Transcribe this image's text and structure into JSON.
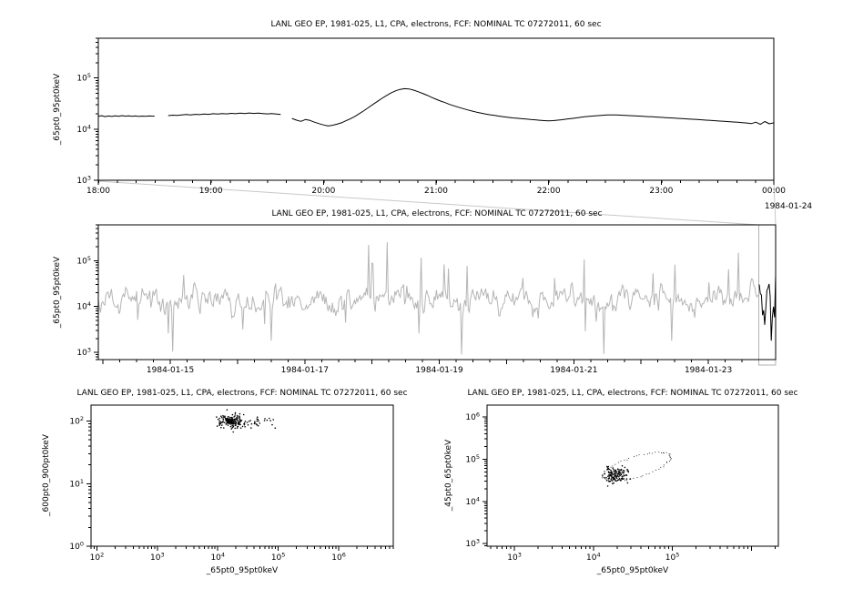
{
  "window": {
    "background": "#ffffff"
  },
  "chart_data": [
    {
      "type": "line",
      "title": "LANL GEO EP, 1981-025, L1, CPA, electrons, FCF: NOMINAL TC 07272011, 60 sec",
      "ylabel": "_65pt0_95pt0keV",
      "xlabel": "",
      "line_color": "#000000",
      "x_axis": {
        "kind": "linear",
        "unit": "hours",
        "range": [
          18,
          24
        ],
        "major_step": 1,
        "minor_step": 0.1667,
        "tick_positions": [
          18,
          19,
          20,
          21,
          22,
          23,
          24
        ],
        "tick_labels": [
          "18:00",
          "19:00",
          "20:00",
          "21:00",
          "22:00",
          "23:00",
          "00:00"
        ],
        "date_label": "1984-01-24"
      },
      "y_axis": {
        "kind": "log",
        "range": [
          1000,
          600000
        ],
        "tick_exponents": [
          3,
          4,
          5
        ]
      },
      "points": [
        [
          18,
          17800
        ],
        [
          18.03,
          18300
        ],
        [
          18.06,
          17600
        ],
        [
          18.09,
          18100
        ],
        [
          18.12,
          17700
        ],
        [
          18.15,
          18200
        ],
        [
          18.18,
          17800
        ],
        [
          18.21,
          18400
        ],
        [
          18.24,
          17900
        ],
        [
          18.27,
          18200
        ],
        [
          18.3,
          17800
        ],
        [
          18.33,
          18100
        ],
        [
          18.36,
          17700
        ],
        [
          18.39,
          18000
        ],
        [
          18.42,
          17800
        ],
        [
          18.45,
          18100
        ],
        [
          18.48,
          17900
        ],
        [
          18.5,
          18000
        ],
        [
          18.52,
          null
        ],
        [
          18.62,
          18400
        ],
        [
          18.66,
          18800
        ],
        [
          18.7,
          18500
        ],
        [
          18.74,
          19000
        ],
        [
          18.78,
          19300
        ],
        [
          18.82,
          18900
        ],
        [
          18.86,
          19500
        ],
        [
          18.9,
          19200
        ],
        [
          18.94,
          19800
        ],
        [
          18.98,
          19500
        ],
        [
          19.02,
          20000
        ],
        [
          19.06,
          19700
        ],
        [
          19.1,
          20200
        ],
        [
          19.14,
          19900
        ],
        [
          19.18,
          20400
        ],
        [
          19.22,
          20000
        ],
        [
          19.26,
          20500
        ],
        [
          19.3,
          20200
        ],
        [
          19.34,
          20700
        ],
        [
          19.38,
          20300
        ],
        [
          19.42,
          20600
        ],
        [
          19.46,
          20200
        ],
        [
          19.5,
          19900
        ],
        [
          19.54,
          20100
        ],
        [
          19.58,
          19700
        ],
        [
          19.62,
          19300
        ],
        [
          19.64,
          null
        ],
        [
          19.72,
          16200
        ],
        [
          19.76,
          15000
        ],
        [
          19.8,
          14200
        ],
        [
          19.84,
          15400
        ],
        [
          19.88,
          14800
        ],
        [
          19.92,
          13700
        ],
        [
          19.96,
          12800
        ],
        [
          20,
          12100
        ],
        [
          20.04,
          11500
        ],
        [
          20.08,
          11900
        ],
        [
          20.12,
          12500
        ],
        [
          20.16,
          13300
        ],
        [
          20.2,
          14600
        ],
        [
          20.24,
          16000
        ],
        [
          20.28,
          17800
        ],
        [
          20.32,
          20200
        ],
        [
          20.36,
          23000
        ],
        [
          20.4,
          26500
        ],
        [
          20.44,
          30500
        ],
        [
          20.48,
          35000
        ],
        [
          20.52,
          40000
        ],
        [
          20.56,
          45500
        ],
        [
          20.6,
          51000
        ],
        [
          20.64,
          56000
        ],
        [
          20.68,
          60000
        ],
        [
          20.72,
          62000
        ],
        [
          20.76,
          61000
        ],
        [
          20.8,
          58000
        ],
        [
          20.84,
          54000
        ],
        [
          20.88,
          50000
        ],
        [
          20.92,
          46000
        ],
        [
          20.96,
          42000
        ],
        [
          21,
          38500
        ],
        [
          21.04,
          35500
        ],
        [
          21.08,
          33000
        ],
        [
          21.12,
          30500
        ],
        [
          21.16,
          28500
        ],
        [
          21.2,
          26800
        ],
        [
          21.24,
          25200
        ],
        [
          21.28,
          23800
        ],
        [
          21.32,
          22600
        ],
        [
          21.36,
          21500
        ],
        [
          21.4,
          20600
        ],
        [
          21.44,
          19800
        ],
        [
          21.48,
          19100
        ],
        [
          21.52,
          18500
        ],
        [
          21.56,
          17900
        ],
        [
          21.6,
          17400
        ],
        [
          21.64,
          17000
        ],
        [
          21.68,
          16600
        ],
        [
          21.72,
          16300
        ],
        [
          21.76,
          16000
        ],
        [
          21.8,
          15700
        ],
        [
          21.84,
          15400
        ],
        [
          21.88,
          15200
        ],
        [
          21.92,
          14900
        ],
        [
          21.96,
          14700
        ],
        [
          22,
          14500
        ],
        [
          22.04,
          14700
        ],
        [
          22.08,
          15000
        ],
        [
          22.12,
          15300
        ],
        [
          22.16,
          15700
        ],
        [
          22.2,
          16100
        ],
        [
          22.24,
          16500
        ],
        [
          22.28,
          17000
        ],
        [
          22.32,
          17400
        ],
        [
          22.36,
          17800
        ],
        [
          22.4,
          18100
        ],
        [
          22.44,
          18400
        ],
        [
          22.48,
          18700
        ],
        [
          22.52,
          18900
        ],
        [
          22.56,
          19000
        ],
        [
          22.6,
          18900
        ],
        [
          22.64,
          18800
        ],
        [
          22.68,
          18600
        ],
        [
          22.72,
          18400
        ],
        [
          22.76,
          18200
        ],
        [
          22.8,
          18000
        ],
        [
          22.84,
          17800
        ],
        [
          22.88,
          17600
        ],
        [
          22.92,
          17400
        ],
        [
          22.96,
          17200
        ],
        [
          23,
          17000
        ],
        [
          23.04,
          16800
        ],
        [
          23.08,
          16600
        ],
        [
          23.12,
          16400
        ],
        [
          23.16,
          16200
        ],
        [
          23.2,
          16000
        ],
        [
          23.24,
          15800
        ],
        [
          23.28,
          15600
        ],
        [
          23.32,
          15400
        ],
        [
          23.36,
          15200
        ],
        [
          23.4,
          15000
        ],
        [
          23.44,
          14800
        ],
        [
          23.48,
          14600
        ],
        [
          23.52,
          14400
        ],
        [
          23.56,
          14200
        ],
        [
          23.6,
          14000
        ],
        [
          23.64,
          13800
        ],
        [
          23.68,
          13600
        ],
        [
          23.72,
          13400
        ],
        [
          23.76,
          13200
        ],
        [
          23.8,
          12800
        ],
        [
          23.84,
          13700
        ],
        [
          23.88,
          12400
        ],
        [
          23.92,
          14100
        ],
        [
          23.96,
          12700
        ],
        [
          24,
          13300
        ]
      ]
    },
    {
      "type": "line",
      "title": "LANL GEO EP, 1981-025, L1, CPA, electrons, FCF: NOMINAL TC 07272011, 60 sec",
      "ylabel": "_65pt0_95pt0keV",
      "xlabel": "",
      "line_color": "#b5b5b5",
      "x_axis": {
        "kind": "linear",
        "unit": "days-of-1984-01",
        "range": [
          13.93,
          24.0
        ],
        "major_step": 1,
        "minor_step": 0.25,
        "tick_positions": [
          15,
          17,
          19,
          21,
          23
        ],
        "tick_labels": [
          "1984-01-15",
          "1984-01-17",
          "1984-01-19",
          "1984-01-21",
          "1984-01-23"
        ]
      },
      "y_axis": {
        "kind": "log",
        "range": [
          700,
          600000
        ],
        "tick_exponents": [
          3,
          4,
          5
        ]
      },
      "highlight": {
        "range": [
          23.75,
          24.0
        ],
        "series_color": "#000000",
        "box_color": "#b0b0b0",
        "connector_color": "#c8c8c8"
      },
      "synthetic": {
        "seed": 1984,
        "n": 620,
        "base_log": 4.15,
        "sigma": 0.12,
        "ar": 0.62,
        "spike_prob": 0.055,
        "spike_min": 0.3,
        "spike_max": 1.05,
        "up_fraction": 0.6,
        "end_boost": 2.2,
        "clip_log": [
          2.95,
          5.4
        ]
      }
    },
    {
      "type": "scatter",
      "title": "LANL GEO EP, 1981-025, L1, CPA, electrons, FCF: NOMINAL TC 07272011, 60 sec",
      "ylabel": "_600pt0_900pt0keV",
      "xlabel": "_65pt0_95pt0keV",
      "dot_color": "#000000",
      "x_axis": {
        "kind": "log",
        "range": [
          80,
          8000000
        ],
        "tick_exponents": [
          2,
          3,
          4,
          5,
          6
        ]
      },
      "y_axis": {
        "kind": "log",
        "range": [
          1,
          180
        ],
        "tick_exponents": [
          0,
          1,
          2
        ]
      },
      "clusters": [
        {
          "seed": 7,
          "n": 160,
          "cx_log": 4.24,
          "cy_log": 2.0,
          "sx": 0.1,
          "sy": 0.055
        },
        {
          "seed": 8,
          "n": 40,
          "cx_log": 4.6,
          "cy_log": 1.97,
          "sx": 0.25,
          "sy": 0.035
        }
      ]
    },
    {
      "type": "scatter",
      "title": "LANL GEO EP, 1981-025, L1, CPA, electrons, FCF: NOMINAL TC 07272011, 60 sec",
      "ylabel": "_45pt0_65pt0keV",
      "xlabel": "_65pt0_95pt0keV",
      "dot_color": "#000000",
      "x_axis": {
        "kind": "log",
        "range": [
          450,
          2200000
        ],
        "tick_exponents": [
          3,
          4,
          5
        ]
      },
      "y_axis": {
        "kind": "log",
        "range": [
          870,
          1900000
        ],
        "tick_exponents": [
          3,
          4,
          5,
          6
        ]
      },
      "clusters": [
        {
          "seed": 11,
          "n": 130,
          "cx_log": 4.28,
          "cy_log": 4.62,
          "sx": 0.07,
          "sy": 0.09
        }
      ],
      "loop": {
        "seed": 12,
        "n": 64,
        "cx_log": 4.55,
        "cy_log": 4.82,
        "rx": 0.5,
        "ry": 0.22,
        "rot_deg": 35
      }
    }
  ]
}
